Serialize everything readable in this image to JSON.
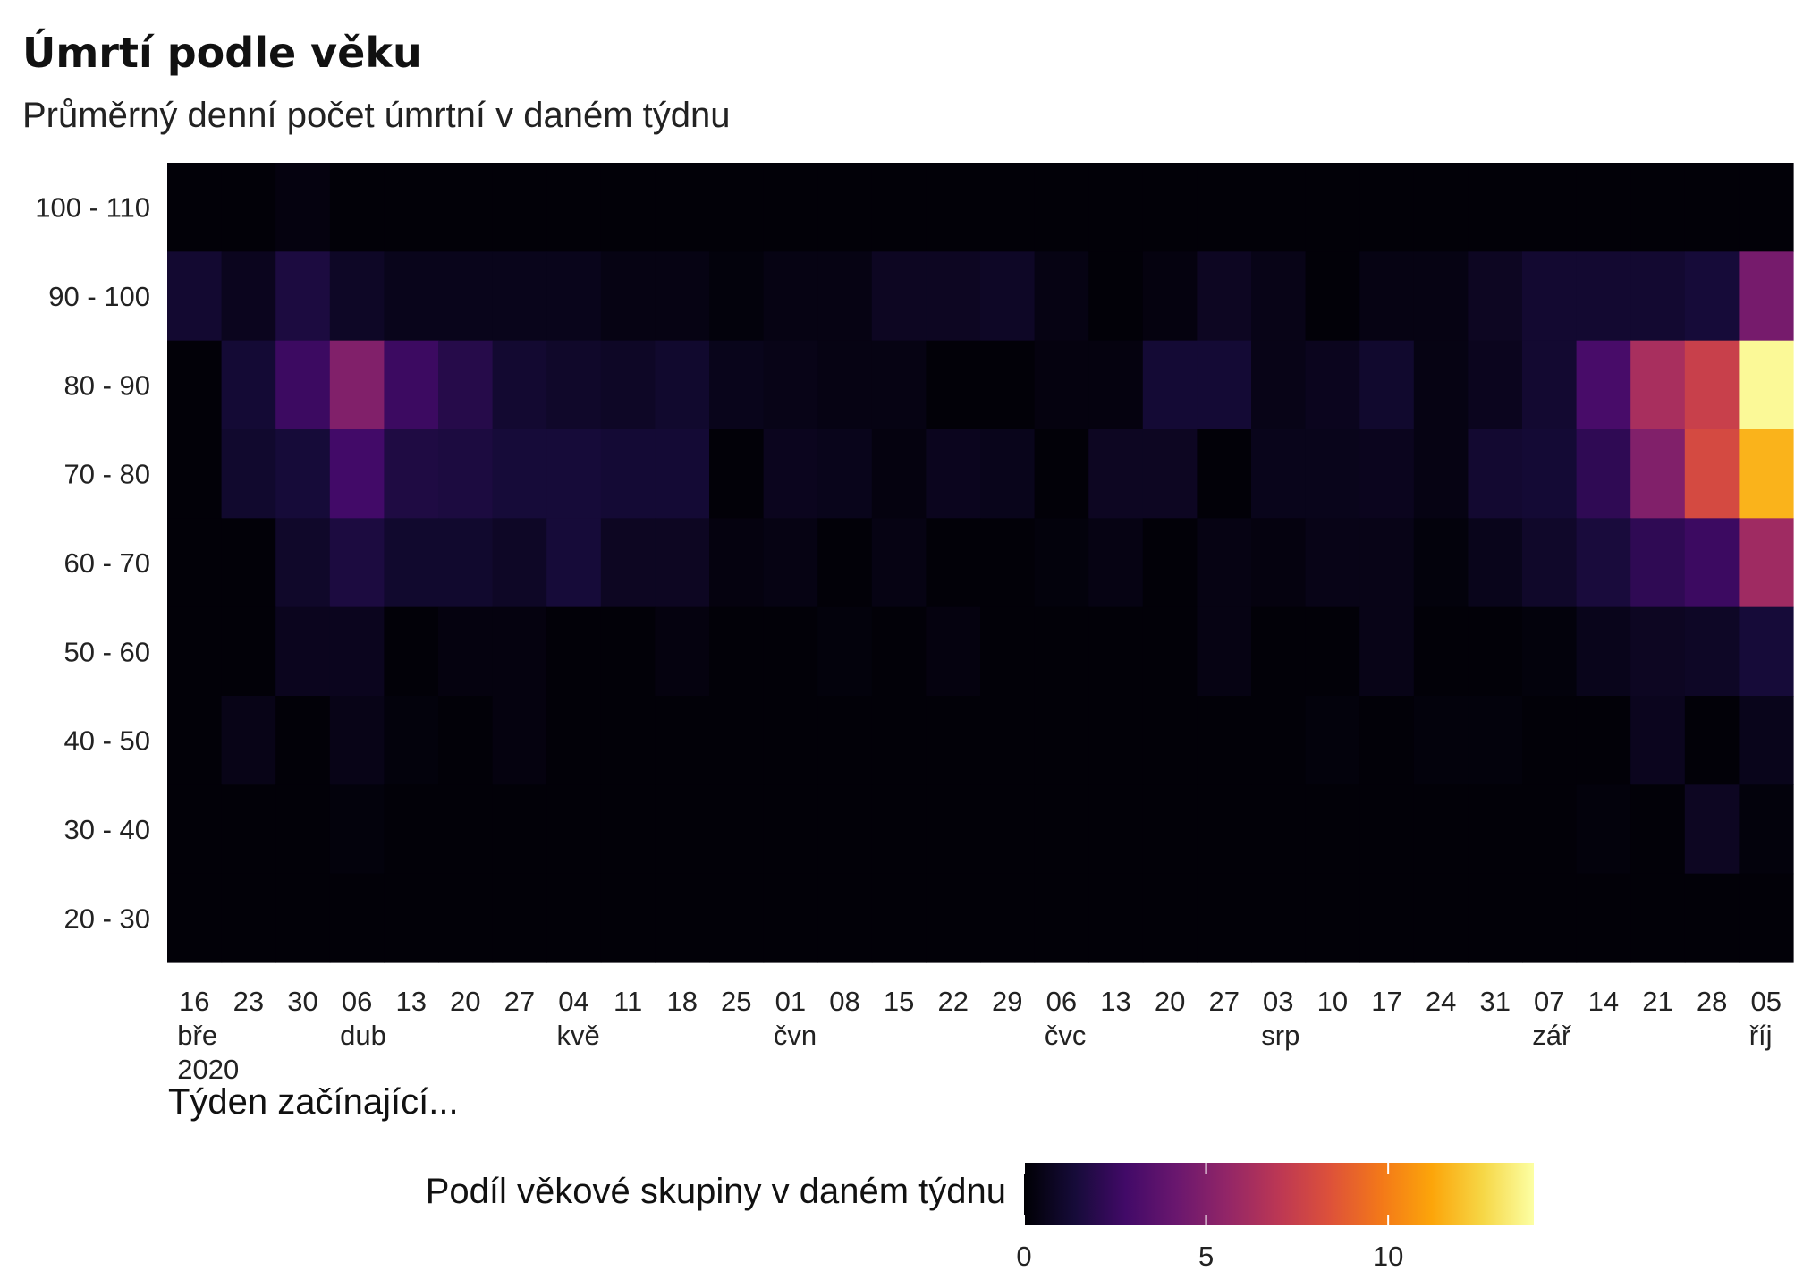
{
  "chart_data": {
    "type": "heatmap",
    "title": "Úmrtí podle věku",
    "subtitle": "Průměrný denní počet úmrtní v daném týdnu",
    "xlabel": "Týden začínající...",
    "ylabel": "",
    "x_tick_labels": [
      {
        "day": "16",
        "month": "bře",
        "year": "2020"
      },
      {
        "day": "23",
        "month": "",
        "year": ""
      },
      {
        "day": "30",
        "month": "",
        "year": ""
      },
      {
        "day": "06",
        "month": "dub",
        "year": ""
      },
      {
        "day": "13",
        "month": "",
        "year": ""
      },
      {
        "day": "20",
        "month": "",
        "year": ""
      },
      {
        "day": "27",
        "month": "",
        "year": ""
      },
      {
        "day": "04",
        "month": "kvě",
        "year": ""
      },
      {
        "day": "11",
        "month": "",
        "year": ""
      },
      {
        "day": "18",
        "month": "",
        "year": ""
      },
      {
        "day": "25",
        "month": "",
        "year": ""
      },
      {
        "day": "01",
        "month": "čvn",
        "year": ""
      },
      {
        "day": "08",
        "month": "",
        "year": ""
      },
      {
        "day": "15",
        "month": "",
        "year": ""
      },
      {
        "day": "22",
        "month": "",
        "year": ""
      },
      {
        "day": "29",
        "month": "",
        "year": ""
      },
      {
        "day": "06",
        "month": "čvc",
        "year": ""
      },
      {
        "day": "13",
        "month": "",
        "year": ""
      },
      {
        "day": "20",
        "month": "",
        "year": ""
      },
      {
        "day": "27",
        "month": "",
        "year": ""
      },
      {
        "day": "03",
        "month": "srp",
        "year": ""
      },
      {
        "day": "10",
        "month": "",
        "year": ""
      },
      {
        "day": "17",
        "month": "",
        "year": ""
      },
      {
        "day": "24",
        "month": "",
        "year": ""
      },
      {
        "day": "31",
        "month": "",
        "year": ""
      },
      {
        "day": "07",
        "month": "zář",
        "year": ""
      },
      {
        "day": "14",
        "month": "",
        "year": ""
      },
      {
        "day": "21",
        "month": "",
        "year": ""
      },
      {
        "day": "28",
        "month": "",
        "year": ""
      },
      {
        "day": "05",
        "month": "říj",
        "year": ""
      }
    ],
    "y_categories": [
      "100 - 110",
      "90 - 100",
      "80 - 90",
      "70 - 80",
      "60 - 70",
      "50 - 60",
      "40 - 50",
      "30 - 40",
      "20 - 30"
    ],
    "values": [
      [
        0.1,
        0.1,
        0.3,
        0.1,
        0.1,
        0.1,
        0.1,
        0.1,
        0.1,
        0.1,
        0.1,
        0.1,
        0.1,
        0.1,
        0.1,
        0.1,
        0.1,
        0.1,
        0.1,
        0.1,
        0.1,
        0.1,
        0.1,
        0.1,
        0.1,
        0.1,
        0.1,
        0.1,
        0.1,
        0.1
      ],
      [
        1.2,
        0.7,
        1.6,
        0.9,
        0.6,
        0.6,
        0.6,
        0.6,
        0.4,
        0.4,
        0.2,
        0.4,
        0.4,
        0.8,
        0.8,
        0.9,
        0.4,
        0.1,
        0.3,
        0.8,
        0.5,
        0.1,
        0.4,
        0.4,
        0.8,
        1.2,
        1.2,
        1.2,
        1.4,
        4.6
      ],
      [
        0.1,
        1.3,
        2.6,
        5.0,
        2.6,
        1.9,
        1.2,
        1.0,
        0.9,
        1.1,
        0.6,
        0.5,
        0.4,
        0.4,
        0.1,
        0.1,
        0.3,
        0.3,
        1.3,
        1.3,
        0.5,
        0.7,
        1.1,
        0.4,
        0.7,
        1.2,
        3.0,
        6.3,
        7.5,
        13.8
      ],
      [
        0.1,
        1.1,
        1.4,
        2.8,
        1.7,
        1.6,
        1.4,
        1.4,
        1.3,
        1.3,
        0.1,
        0.7,
        0.6,
        0.3,
        0.7,
        0.6,
        0.1,
        0.8,
        0.8,
        0.1,
        0.6,
        0.6,
        0.7,
        0.4,
        1.2,
        1.3,
        2.2,
        5.0,
        8.0,
        11.6
      ],
      [
        0.1,
        0.1,
        1.0,
        1.6,
        1.1,
        1.1,
        0.9,
        1.4,
        0.8,
        0.8,
        0.3,
        0.4,
        0.1,
        0.4,
        0.1,
        0.1,
        0.2,
        0.4,
        0.1,
        0.4,
        0.3,
        0.5,
        0.5,
        0.2,
        0.6,
        1.0,
        1.5,
        2.2,
        2.6,
        6.0
      ],
      [
        0.1,
        0.1,
        0.7,
        0.7,
        0.1,
        0.3,
        0.3,
        0.1,
        0.1,
        0.3,
        0.1,
        0.1,
        0.2,
        0.1,
        0.3,
        0.1,
        0.1,
        0.1,
        0.1,
        0.4,
        0.1,
        0.1,
        0.5,
        0.1,
        0.1,
        0.2,
        0.6,
        0.8,
        0.9,
        1.4
      ],
      [
        0.1,
        0.5,
        0.1,
        0.5,
        0.2,
        0.1,
        0.3,
        0.1,
        0.1,
        0.1,
        0.1,
        0.1,
        0.1,
        0.1,
        0.1,
        0.1,
        0.1,
        0.1,
        0.1,
        0.1,
        0.1,
        0.2,
        0.1,
        0.2,
        0.2,
        0.1,
        0.1,
        0.7,
        0.1,
        0.6
      ],
      [
        0.1,
        0.1,
        0.1,
        0.2,
        0.1,
        0.1,
        0.1,
        0.1,
        0.1,
        0.1,
        0.1,
        0.1,
        0.1,
        0.1,
        0.1,
        0.1,
        0.1,
        0.1,
        0.1,
        0.1,
        0.1,
        0.1,
        0.1,
        0.1,
        0.1,
        0.1,
        0.2,
        0.1,
        0.8,
        0.2
      ],
      [
        0.1,
        0.1,
        0.1,
        0.1,
        0.1,
        0.1,
        0.1,
        0.1,
        0.1,
        0.1,
        0.1,
        0.1,
        0.1,
        0.1,
        0.1,
        0.1,
        0.1,
        0.1,
        0.1,
        0.1,
        0.1,
        0.1,
        0.1,
        0.1,
        0.1,
        0.1,
        0.1,
        0.1,
        0.1,
        0.1
      ]
    ],
    "colorscale": "inferno",
    "colorbar": {
      "title": "Podíl věkové skupiny v daném týdnu",
      "min": 0,
      "max": 14,
      "ticks": [
        0,
        5,
        10
      ],
      "tick_labels": [
        "0",
        "5",
        "10"
      ]
    },
    "legend_position": "bottom"
  }
}
